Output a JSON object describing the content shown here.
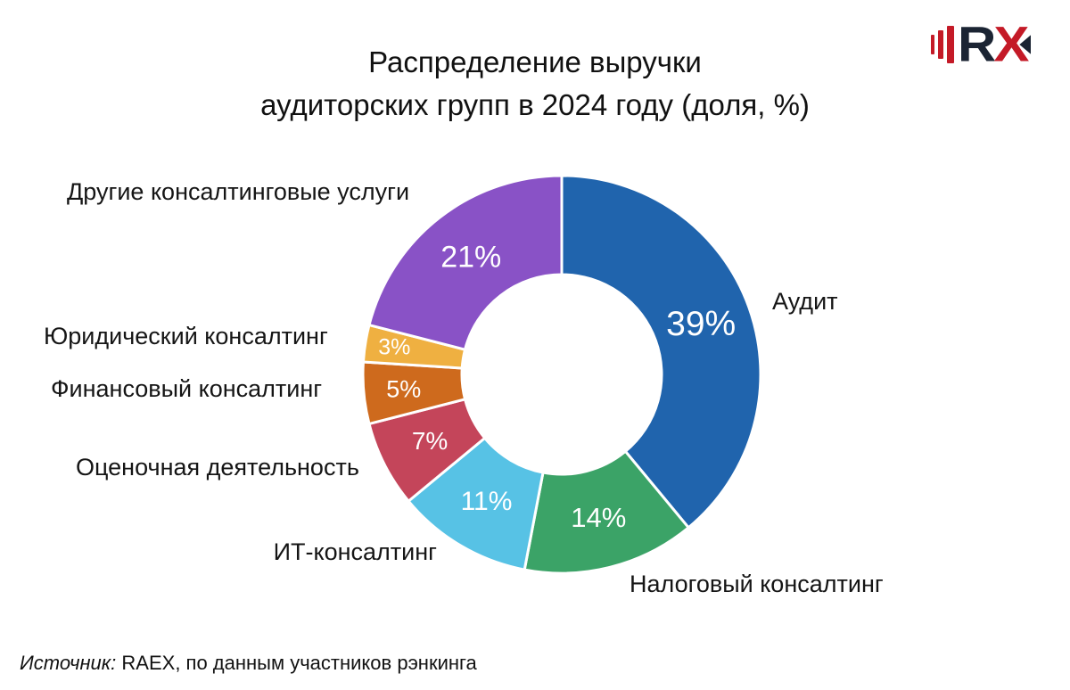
{
  "title": {
    "line1": "Распределение выручки",
    "line2": "аудиторских групп в 2024 году (доля, %)"
  },
  "logo": {
    "name": "RAEX",
    "letter_r": "R",
    "letter_x": "X",
    "red": "#c41a27",
    "dark": "#1b2433"
  },
  "source": {
    "prefix": "Источник:",
    "text": " RAEX, по данным участников рэнкинга"
  },
  "chart_data": {
    "type": "pie",
    "subtype": "donut",
    "title": "Распределение выручки аудиторских групп в 2024 году (доля, %)",
    "unit": "%",
    "start_angle_deg": 0,
    "direction": "clockwise",
    "inner_radius_ratio": 0.5,
    "gap_color": "#ffffff",
    "slices": [
      {
        "label": "Аудит",
        "value": 39,
        "pct": "39%",
        "color": "#2064ad"
      },
      {
        "label": "Налоговый консалтинг",
        "value": 14,
        "pct": "14%",
        "color": "#3ba367"
      },
      {
        "label": "ИТ-консалтинг",
        "value": 11,
        "pct": "11%",
        "color": "#57c2e5"
      },
      {
        "label": "Оценочная деятельность",
        "value": 7,
        "pct": "7%",
        "color": "#c4455a"
      },
      {
        "label": "Финансовый консалтинг",
        "value": 5,
        "pct": "5%",
        "color": "#ce6a1d"
      },
      {
        "label": "Юридический консалтинг",
        "value": 3,
        "pct": "3%",
        "color": "#efb041"
      },
      {
        "label": "Другие консалтинговые услуги",
        "value": 21,
        "pct": "21%",
        "color": "#8952c6"
      }
    ],
    "source": "Источник: RAEX, по данным участников рэнкинга"
  }
}
